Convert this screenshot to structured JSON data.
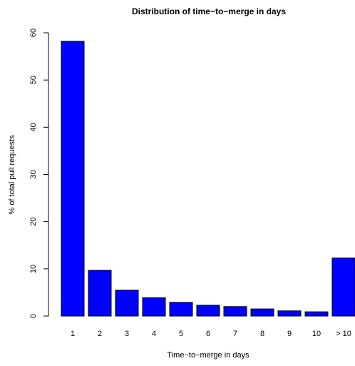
{
  "chart_data": {
    "type": "bar",
    "title": "Distribution of time−to−merge in days",
    "xlabel": "Time−to−merge in days",
    "ylabel": "% of total pull requests",
    "categories": [
      "1",
      "2",
      "3",
      "4",
      "5",
      "6",
      "7",
      "8",
      "9",
      "10",
      "> 10"
    ],
    "values": [
      58.2,
      9.7,
      5.5,
      3.9,
      2.9,
      2.3,
      2.0,
      1.5,
      1.1,
      0.9,
      12.3
    ],
    "ylim": [
      0,
      60
    ],
    "yticks": [
      0,
      10,
      20,
      30,
      40,
      50,
      60
    ],
    "ytick_labels": [
      "0",
      "10",
      "20",
      "30",
      "40",
      "50",
      "60"
    ],
    "grid": false,
    "bar_color": "#0000ff",
    "bar_edge_color": "#000000"
  }
}
